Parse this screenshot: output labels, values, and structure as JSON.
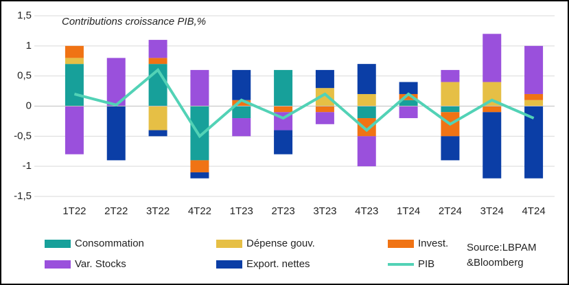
{
  "chart_data": {
    "type": "bar",
    "stacked": true,
    "title": "Contributions croissance PIB,%",
    "categories": [
      "1T22",
      "2T22",
      "3T22",
      "4T22",
      "1T23",
      "2T23",
      "3T23",
      "4T23",
      "1T24",
      "2T24",
      "3T24",
      "4T24"
    ],
    "series": [
      {
        "name": "Consommation",
        "color": "#17a09a",
        "values": [
          0.7,
          0,
          0.7,
          -0.9,
          -0.2,
          0.6,
          0,
          -0.2,
          0.1,
          -0.1,
          0,
          0
        ]
      },
      {
        "name": "Dépense gouv.",
        "color": "#e6bf45",
        "values": [
          0.1,
          0,
          -0.4,
          0,
          0,
          0,
          0.3,
          0.2,
          0,
          0.4,
          0.4,
          0.1
        ]
      },
      {
        "name": "Invest.",
        "color": "#f07314",
        "values": [
          0.2,
          0,
          0.1,
          -0.2,
          0.1,
          -0.1,
          -0.1,
          -0.3,
          0.1,
          -0.4,
          -0.1,
          0.1
        ]
      },
      {
        "name": "Var. Stocks",
        "color": "#9a50dc",
        "values": [
          -0.8,
          0.8,
          0.3,
          0.6,
          -0.3,
          -0.3,
          -0.2,
          -0.5,
          -0.2,
          0.2,
          0.8,
          0.8
        ]
      },
      {
        "name": "Export.  nettes",
        "color": "#0b3ea6",
        "values": [
          0,
          -0.9,
          -0.1,
          -0.1,
          0.5,
          -0.4,
          0.3,
          0.5,
          0.2,
          -0.4,
          -1.1,
          -1.2
        ]
      },
      {
        "name": "PIB",
        "type": "line",
        "color": "#52d2b6",
        "values": [
          0.2,
          0.02,
          0.6,
          -0.5,
          0.1,
          -0.2,
          0.2,
          -0.4,
          0.2,
          -0.3,
          0.1,
          -0.2
        ]
      }
    ],
    "ylim": [
      -1.5,
      1.5
    ],
    "yticks": [
      {
        "value": -1.5,
        "label": "-1,5"
      },
      -1,
      {
        "value": -0.5,
        "label": "-0,5"
      },
      0,
      {
        "value": 0.5,
        "label": "0,5"
      },
      1,
      {
        "value": 1.5,
        "label": "1,5"
      }
    ],
    "grid": true,
    "source": [
      "Source:LBPAM",
      "&Bloomberg"
    ]
  }
}
